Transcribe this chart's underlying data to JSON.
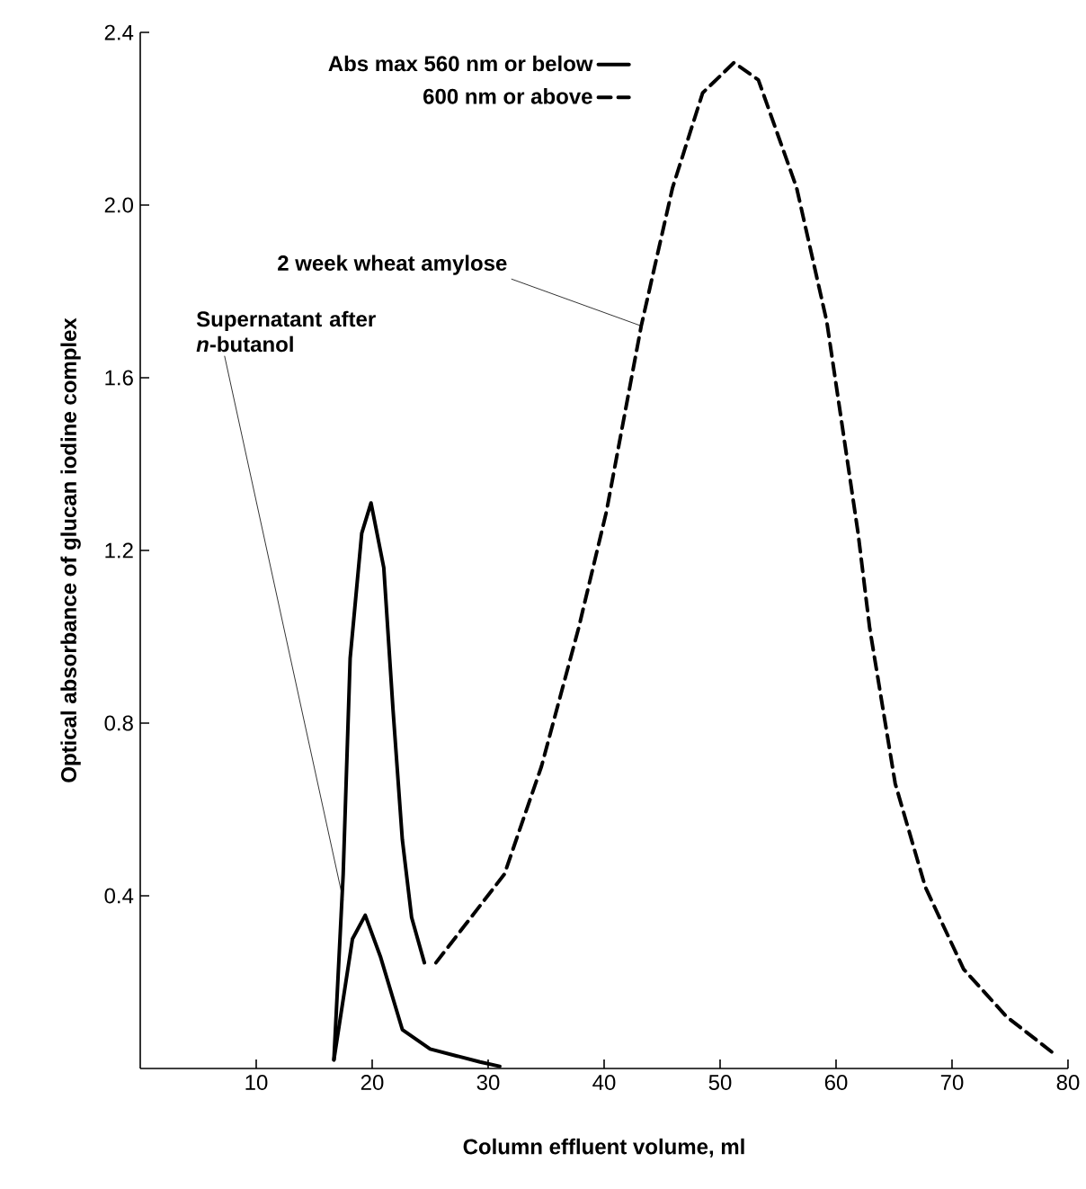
{
  "chart_data": {
    "type": "line",
    "xlabel": "Column effluent volume, ml",
    "ylabel": "Optical absorbance of  glucan iodine complex",
    "xlim": [
      0,
      80
    ],
    "ylim": [
      0,
      2.4
    ],
    "xticks": [
      10,
      20,
      30,
      40,
      50,
      60,
      70,
      80
    ],
    "yticks": [
      {
        "value": 0.4,
        "label": "0.4"
      },
      {
        "value": 0.8,
        "label": "0.8"
      },
      {
        "value": 1.2,
        "label": "1.2"
      },
      {
        "value": 1.6,
        "label": "1.6"
      },
      {
        "value": 2.0,
        "label": "2.0"
      },
      {
        "value": 2.4,
        "label": "2.4"
      }
    ],
    "grid": false,
    "legend": "top",
    "marker": "none",
    "series": [
      {
        "name": "Abs max 560 nm or below",
        "color": "#000000",
        "line_style": "solid",
        "x": [
          16.7,
          17.5,
          18.1,
          19.1,
          19.9,
          21,
          21.8,
          22.6,
          23.4,
          24.5
        ],
        "values": [
          0.02,
          0.45,
          0.95,
          1.24,
          1.31,
          1.16,
          0.83,
          0.53,
          0.35,
          0.245
        ]
      },
      {
        "name": "600 nm or above",
        "color": "#000000",
        "line_style": "dashed",
        "x": [
          25.5,
          31.4,
          34.6,
          37.8,
          40.2,
          43.2,
          45.9,
          48.5,
          51.2,
          53.3,
          56.6,
          59.2,
          61.9,
          62.9,
          65.1,
          67.7,
          71,
          74.7,
          79
        ],
        "values": [
          0.245,
          0.45,
          0.7,
          1.02,
          1.29,
          1.72,
          2.04,
          2.26,
          2.33,
          2.29,
          2.04,
          1.73,
          1.24,
          1.02,
          0.66,
          0.42,
          0.23,
          0.12,
          0.03
        ]
      },
      {
        "color": "#000000",
        "line_style": "solid",
        "x": [
          16.7,
          18.3,
          19.4,
          20.7,
          22.6,
          25,
          29.3,
          31
        ],
        "values": [
          0.02,
          0.3,
          0.355,
          0.26,
          0.09,
          0.045,
          0.015,
          0.005
        ]
      }
    ],
    "annotations": [
      {
        "text": "2 week wheat amylose",
        "x": 43.2,
        "y": 1.72
      },
      {
        "text": "Supernatant after *n*-butanol",
        "x": 17.5,
        "y": 0.39
      }
    ]
  }
}
